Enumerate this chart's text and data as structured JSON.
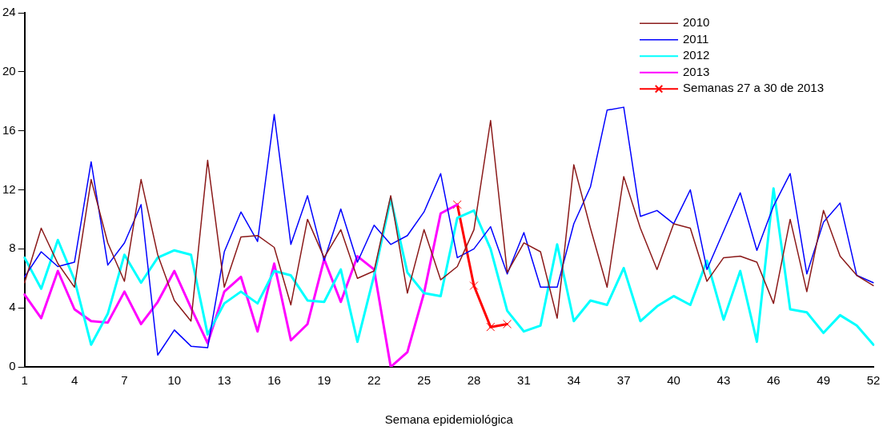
{
  "chart_data": {
    "type": "line",
    "xlabel": "Semana epidemiológica",
    "categories": [
      "1",
      null,
      null,
      "4",
      null,
      null,
      "7",
      null,
      null,
      "10",
      null,
      null,
      "13",
      null,
      null,
      "16",
      null,
      null,
      "19",
      null,
      null,
      "22",
      null,
      null,
      "25",
      null,
      null,
      "28",
      null,
      null,
      "31",
      null,
      null,
      "34",
      null,
      null,
      "37",
      null,
      null,
      "40",
      null,
      null,
      "43",
      null,
      null,
      "46",
      null,
      null,
      "49",
      null,
      null,
      "52"
    ],
    "ylim": [
      0,
      24
    ],
    "yticks": [
      0,
      4,
      8,
      12,
      16,
      20,
      24
    ],
    "grid": false,
    "legend": "top right",
    "marker": "none",
    "series": [
      {
        "name": "2010",
        "color": "#8b1a1a",
        "values": [
          5.7,
          9.4,
          7.0,
          5.4,
          12.7,
          8.4,
          5.8,
          12.7,
          7.6,
          4.5,
          3.1,
          14.0,
          5.4,
          8.8,
          8.9,
          8.1,
          4.2,
          10.0,
          7.4,
          9.3,
          6.0,
          6.5,
          11.6,
          5.0,
          9.3,
          5.9,
          6.8,
          9.3,
          16.7,
          6.4,
          8.4,
          7.8,
          3.3,
          13.7,
          9.4,
          5.4,
          12.9,
          9.4,
          6.6,
          9.7,
          9.4,
          5.8,
          7.4,
          7.5,
          7.1,
          4.3,
          10.0,
          5.1,
          10.6,
          7.5,
          6.2,
          5.5
        ]
      },
      {
        "name": "2011",
        "color": "#0000ff",
        "values": [
          6.1,
          7.8,
          6.8,
          7.1,
          13.9,
          6.9,
          8.4,
          11.0,
          0.8,
          2.5,
          1.4,
          1.3,
          7.8,
          10.5,
          8.5,
          17.1,
          8.3,
          11.6,
          7.2,
          10.7,
          7.1,
          9.6,
          8.3,
          8.9,
          10.5,
          13.1,
          7.4,
          8.0,
          9.5,
          6.3,
          9.1,
          5.4,
          5.4,
          9.7,
          12.2,
          17.4,
          17.6,
          10.2,
          10.6,
          9.7,
          12.0,
          6.6,
          9.2,
          11.8,
          7.9,
          10.9,
          13.1,
          6.3,
          9.8,
          11.1,
          6.2,
          5.7
        ]
      },
      {
        "name": "2012",
        "color": "#00ffff",
        "values": [
          7.4,
          5.3,
          8.6,
          5.9,
          1.5,
          3.6,
          7.6,
          5.7,
          7.4,
          7.9,
          7.6,
          2.2,
          4.3,
          5.1,
          4.3,
          6.5,
          6.2,
          4.5,
          4.4,
          6.6,
          1.7,
          6.2,
          11.4,
          6.4,
          5.0,
          4.8,
          10.1,
          10.6,
          8.0,
          3.8,
          2.4,
          2.8,
          8.3,
          3.1,
          4.5,
          4.2,
          6.7,
          3.1,
          4.1,
          4.8,
          4.2,
          7.2,
          3.2,
          6.5,
          1.7,
          12.1,
          3.9,
          3.7,
          2.3,
          3.5,
          2.8,
          1.5
        ]
      },
      {
        "name": "2013",
        "color": "#ff00ff",
        "values": [
          4.9,
          3.3,
          6.5,
          3.9,
          3.1,
          3.0,
          5.1,
          2.9,
          4.4,
          6.5,
          4.0,
          1.6,
          5.1,
          6.1,
          2.4,
          7.0,
          1.8,
          2.9,
          7.3,
          4.4,
          7.5,
          6.6,
          0,
          1.0,
          5.0,
          10.4,
          11.0,
          null,
          null,
          null,
          null,
          null,
          null,
          null,
          null,
          null,
          null,
          null,
          null,
          null,
          null,
          null,
          null,
          null,
          null,
          null,
          null,
          null,
          null,
          null,
          null,
          null
        ]
      },
      {
        "name": "Semanas 27 a 30 de 2013",
        "color": "#ff0000",
        "marker": "cross",
        "values": [
          null,
          null,
          null,
          null,
          null,
          null,
          null,
          null,
          null,
          null,
          null,
          null,
          null,
          null,
          null,
          null,
          null,
          null,
          null,
          null,
          null,
          null,
          null,
          null,
          null,
          null,
          11.0,
          5.5,
          2.7,
          2.9,
          null,
          null,
          null,
          null,
          null,
          null,
          null,
          null,
          null,
          null,
          null,
          null,
          null,
          null,
          null,
          null,
          null,
          null,
          null,
          null,
          null,
          null
        ]
      }
    ]
  }
}
